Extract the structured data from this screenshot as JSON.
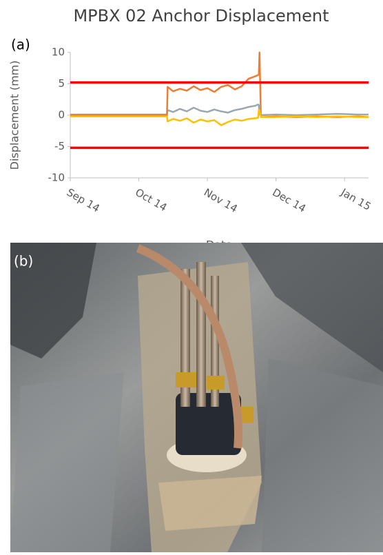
{
  "chart_data": {
    "type": "line",
    "title": "MPBX 02 Anchor Displacement",
    "panel_label": "(a)",
    "x_label": "Date",
    "y_label": "Displacement (mm)",
    "xlim": [
      0,
      4.35
    ],
    "xticks": [
      {
        "value": 0,
        "label": "Sep 14"
      },
      {
        "value": 1,
        "label": "Oct 14"
      },
      {
        "value": 2,
        "label": "Nov 14"
      },
      {
        "value": 3,
        "label": "Dec 14"
      },
      {
        "value": 4,
        "label": "Jan 15"
      }
    ],
    "ylim": [
      -10,
      10
    ],
    "yticks": [
      -10,
      -5,
      0,
      5,
      10
    ],
    "thresholds": [
      5.2,
      -5.2
    ],
    "threshold_color": "#ff0000",
    "x": [
      0,
      0.5,
      1.0,
      1.41,
      1.42,
      1.5,
      1.6,
      1.7,
      1.8,
      1.9,
      2.0,
      2.1,
      2.2,
      2.3,
      2.4,
      2.5,
      2.6,
      2.7,
      2.74,
      2.75,
      2.76,
      2.78,
      3.0,
      3.3,
      3.6,
      3.9,
      4.2,
      4.35
    ],
    "series": [
      {
        "color": "#9aa7b0",
        "values": [
          0.1,
          0.1,
          0.1,
          0.1,
          0.8,
          0.5,
          1.0,
          0.6,
          1.2,
          0.7,
          0.5,
          0.9,
          0.6,
          0.4,
          0.8,
          1.0,
          1.3,
          1.5,
          1.7,
          1.6,
          0.1,
          0.0,
          0.1,
          0.0,
          0.1,
          0.2,
          0.1,
          0.1
        ]
      },
      {
        "color": "#ed7d31",
        "values": [
          0,
          0,
          0,
          0,
          4.5,
          3.8,
          4.2,
          3.9,
          4.6,
          4.0,
          4.3,
          3.7,
          4.5,
          4.8,
          4.1,
          4.6,
          5.8,
          6.2,
          6.4,
          6.5,
          10,
          -0.3,
          -0.2,
          -0.3,
          -0.2,
          -0.3,
          -0.2,
          -0.3
        ]
      },
      {
        "color": "#ffc000",
        "values": [
          -0.2,
          -0.2,
          -0.2,
          -0.2,
          -1.0,
          -0.6,
          -0.9,
          -0.5,
          -1.2,
          -0.7,
          -1.0,
          -0.8,
          -1.6,
          -1.1,
          -0.7,
          -0.9,
          -0.6,
          -0.5,
          -0.4,
          0.8,
          0.8,
          -0.3,
          -0.3,
          -0.2,
          -0.3,
          -0.2,
          -0.3,
          -0.3
        ]
      }
    ]
  },
  "photo": {
    "label": "(b)"
  }
}
